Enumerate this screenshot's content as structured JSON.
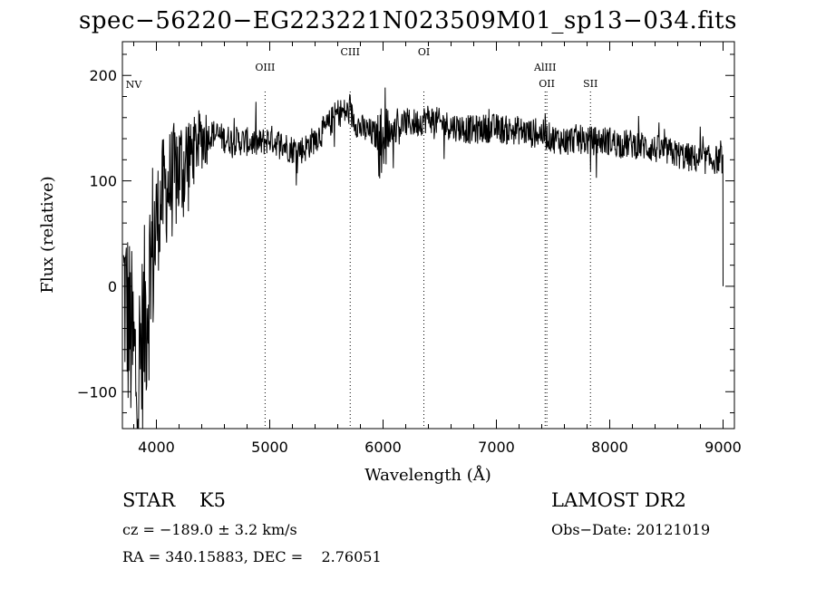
{
  "chart_data": {
    "type": "line",
    "title": "spec−56220−EG223221N023509M01_sp13−034.fits",
    "xlabel": "Wavelength (Å)",
    "ylabel": "Flux (relative)",
    "xlim": [
      3700,
      9100
    ],
    "ylim": [
      -135,
      232
    ],
    "xticks": [
      4000,
      5000,
      6000,
      7000,
      8000,
      9000
    ],
    "yticks": [
      -100,
      0,
      100,
      200
    ],
    "grid": false,
    "line_color": "#000000",
    "marker_color": "#000000",
    "lines": [
      {
        "label": "NV",
        "x": 3800
      },
      {
        "label": "OIII",
        "x": 4959
      },
      {
        "label": "CIII",
        "x": 5710
      },
      {
        "label": "OI",
        "x": 6360
      },
      {
        "label": "AlIII",
        "x": 7430
      },
      {
        "label": "OII",
        "x": 7445
      },
      {
        "label": "SII",
        "x": 7830
      }
    ],
    "spectrum_anchors": [
      [
        3710,
        0
      ],
      [
        3760,
        -40
      ],
      [
        3800,
        -70
      ],
      [
        3830,
        -90
      ],
      [
        3870,
        -60
      ],
      [
        3900,
        -30
      ],
      [
        3950,
        20
      ],
      [
        4000,
        60
      ],
      [
        4050,
        85
      ],
      [
        4100,
        95
      ],
      [
        4150,
        100
      ],
      [
        4200,
        110
      ],
      [
        4250,
        115
      ],
      [
        4300,
        125
      ],
      [
        4350,
        135
      ],
      [
        4400,
        140
      ],
      [
        4500,
        145
      ],
      [
        4600,
        140
      ],
      [
        4700,
        138
      ],
      [
        4800,
        137
      ],
      [
        4900,
        135
      ],
      [
        5000,
        140
      ],
      [
        5100,
        135
      ],
      [
        5200,
        130
      ],
      [
        5300,
        130
      ],
      [
        5400,
        140
      ],
      [
        5500,
        150
      ],
      [
        5600,
        165
      ],
      [
        5700,
        165
      ],
      [
        5800,
        150
      ],
      [
        5900,
        145
      ],
      [
        6000,
        140
      ],
      [
        6100,
        150
      ],
      [
        6200,
        155
      ],
      [
        6300,
        155
      ],
      [
        6400,
        160
      ],
      [
        6500,
        155
      ],
      [
        6600,
        152
      ],
      [
        6700,
        150
      ],
      [
        6800,
        148
      ],
      [
        6900,
        150
      ],
      [
        7000,
        150
      ],
      [
        7100,
        148
      ],
      [
        7200,
        148
      ],
      [
        7300,
        145
      ],
      [
        7400,
        145
      ],
      [
        7500,
        140
      ],
      [
        7600,
        138
      ],
      [
        7700,
        140
      ],
      [
        7800,
        138
      ],
      [
        7900,
        138
      ],
      [
        8000,
        138
      ],
      [
        8100,
        135
      ],
      [
        8200,
        135
      ],
      [
        8300,
        133
      ],
      [
        8400,
        130
      ],
      [
        8500,
        128
      ],
      [
        8600,
        125
      ],
      [
        8700,
        122
      ],
      [
        8800,
        120
      ],
      [
        8900,
        120
      ],
      [
        9000,
        120
      ]
    ]
  },
  "footer": {
    "object": "STAR    K5",
    "cz": "cz = −189.0 ± 3.2 km/s",
    "radec": "RA = 340.15883, DEC =    2.76051",
    "survey": "LAMOST DR2",
    "obsdate": "Obs−Date: 20121019"
  }
}
